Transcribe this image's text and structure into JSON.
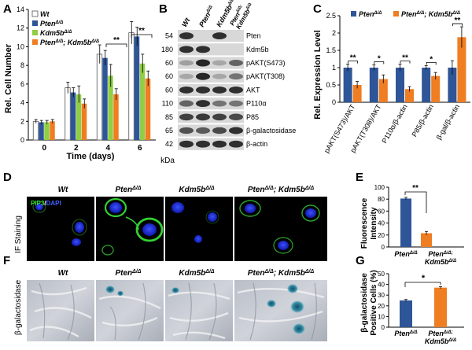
{
  "panels": {
    "A": "A",
    "B": "B",
    "C": "C",
    "D": "D",
    "E": "E",
    "F": "F",
    "G": "G"
  },
  "panelA": {
    "ylabel": "Rel. Cell Number",
    "xlabel": "Time (days)",
    "legend": [
      {
        "base": "Wt",
        "sup": ""
      },
      {
        "base": "Pten",
        "sup": "Δ/Δ"
      },
      {
        "base": "Kdm5b",
        "sup": "Δ/Δ"
      },
      {
        "base": "Pten",
        "sup": "Δ/Δ",
        "base2": "; Kdm5b",
        "sup2": "Δ/Δ"
      }
    ],
    "sig": [
      "**",
      "**"
    ]
  },
  "panelB": {
    "columns": [
      {
        "base": "Wt",
        "sup": ""
      },
      {
        "base": "Pten",
        "sup": "Δ/Δ"
      },
      {
        "base": "Kdm5b",
        "sup": "Δ/Δ"
      },
      {
        "base": "Pten",
        "sup": "Δ/Δ;",
        "line2": "Kdm5b",
        "sup2": "Δ/Δ"
      }
    ],
    "rows": [
      {
        "kda": "54",
        "label": "Pten",
        "bands": [
          0.9,
          0.0,
          0.9,
          0.0
        ]
      },
      {
        "kda": "180",
        "label": "Kdm5b",
        "bands": [
          0.9,
          0.9,
          0.0,
          0.0
        ]
      },
      {
        "kda": "60",
        "label": "pAKT(S473)",
        "bands": [
          0.25,
          0.95,
          0.2,
          0.6
        ]
      },
      {
        "kda": "60",
        "label": "pAKT(T308)",
        "bands": [
          0.2,
          0.95,
          0.2,
          0.5
        ]
      },
      {
        "kda": "60",
        "label": "AKT",
        "bands": [
          0.9,
          0.9,
          0.9,
          0.9
        ]
      },
      {
        "kda": "110",
        "label": "P110α",
        "bands": [
          0.6,
          0.9,
          0.5,
          0.5
        ]
      },
      {
        "kda": "85",
        "label": "P85",
        "bands": [
          0.8,
          0.85,
          0.8,
          0.75
        ]
      },
      {
        "kda": "65",
        "label": "β-galactosidase",
        "bands": [
          0.7,
          0.65,
          0.75,
          0.9
        ]
      },
      {
        "kda": "42",
        "label": "β-actin",
        "bands": [
          0.9,
          0.9,
          0.9,
          0.9
        ]
      }
    ],
    "kda_unit": "kDa"
  },
  "panelC": {
    "ylabel": "Rel. Expression Level",
    "legend": [
      {
        "base": "Pten",
        "sup": "Δ/Δ"
      },
      {
        "base": "Pten",
        "sup": "Δ/Δ",
        "base2": "; Kdm5b",
        "sup2": "Δ/Δ"
      }
    ],
    "sig": [
      "**",
      "*",
      "**",
      "*",
      "**"
    ]
  },
  "panelD": {
    "side_label": "IF Staining",
    "columns": [
      {
        "base": "Wt",
        "sup": ""
      },
      {
        "base": "Pten",
        "sup": "Δ/Δ"
      },
      {
        "base": "Kdm5b",
        "sup": "Δ/Δ"
      },
      {
        "base": "Pten",
        "sup": "Δ/Δ",
        "base2": "; Kdm5b",
        "sup2": "Δ/Δ"
      }
    ],
    "stain_green": "PIP3",
    "stain_sep": "/",
    "stain_blue": "DAPI"
  },
  "panelE": {
    "ylabel_line1": "Fluorescence",
    "ylabel_line2": "Intensity",
    "sig": "**",
    "xlabels": [
      {
        "base": "Pten",
        "sup": "Δ/Δ"
      },
      {
        "base": "Pten",
        "sup": "Δ/Δ;",
        "line2": "Kdm5b",
        "sup2": "Δ/Δ"
      }
    ]
  },
  "panelF": {
    "side_label": "β-galactosidase",
    "columns": [
      {
        "base": "Wt",
        "sup": ""
      },
      {
        "base": "Pten",
        "sup": "Δ/Δ"
      },
      {
        "base": "Kdm5b",
        "sup": "Δ/Δ"
      },
      {
        "base": "Pten",
        "sup": "Δ/Δ",
        "base2": "; Kdm5b",
        "sup2": "Δ/Δ"
      }
    ]
  },
  "panelG": {
    "ylabel_line1": "β-galactosidase",
    "ylabel_line2": "Positive Cells (%)",
    "sig": "*",
    "xlabels": [
      {
        "base": "Pten",
        "sup": "Δ/Δ"
      },
      {
        "base": "Pten",
        "sup": "Δ/Δ;",
        "line2": "Kdm5b",
        "sup2": "Δ/Δ"
      }
    ]
  },
  "chart_data": [
    {
      "type": "bar",
      "title": "",
      "xlabel": "Time (days)",
      "ylabel": "Rel. Cell Number",
      "categories": [
        "0",
        "2",
        "4",
        "6"
      ],
      "ylim": [
        0,
        14
      ],
      "yticks": [
        0,
        2,
        4,
        6,
        8,
        10,
        12,
        14
      ],
      "series": [
        {
          "name": "Wt",
          "color": "#ffffff",
          "values": [
            2.0,
            5.6,
            9.2,
            11.5
          ],
          "err": [
            0.2,
            0.6,
            1.0,
            1.2
          ]
        },
        {
          "name": "PtenΔ/Δ",
          "color": "#2e5597",
          "values": [
            1.9,
            5.1,
            8.8,
            11.1
          ],
          "err": [
            0.2,
            0.5,
            0.8,
            1.0
          ]
        },
        {
          "name": "Kdm5bΔ/Δ",
          "color": "#8fce45",
          "values": [
            1.9,
            4.9,
            6.9,
            8.2
          ],
          "err": [
            0.2,
            0.9,
            1.2,
            1.0
          ]
        },
        {
          "name": "PtenΔ/Δ; Kdm5bΔ/Δ",
          "color": "#ef7d21",
          "values": [
            2.0,
            3.9,
            4.9,
            6.6
          ],
          "err": [
            0.2,
            0.5,
            0.6,
            0.8
          ]
        }
      ]
    },
    {
      "type": "bar",
      "title": "",
      "ylabel": "Rel. Expression Level",
      "categories": [
        "pAKT(S473)/AKT",
        "pAKT(T308)/AKT",
        "P110α/β-actin",
        "P85/β-actin",
        "β-gal/β-actin"
      ],
      "ylim": [
        0,
        2.5
      ],
      "yticks": [
        0,
        0.5,
        1,
        1.5,
        2,
        2.5
      ],
      "series": [
        {
          "name": "PtenΔ/Δ",
          "color": "#2e5597",
          "values": [
            1.0,
            1.0,
            1.0,
            1.0,
            1.0
          ],
          "err": [
            0.1,
            0.08,
            0.1,
            0.06,
            0.2
          ]
        },
        {
          "name": "PtenΔ/Δ; Kdm5bΔ/Δ",
          "color": "#ef7d21",
          "values": [
            0.5,
            0.67,
            0.38,
            0.76,
            1.88
          ],
          "err": [
            0.1,
            0.12,
            0.07,
            0.1,
            0.3
          ]
        }
      ]
    },
    {
      "type": "bar",
      "ylabel": "Fluorescence Intensity",
      "categories": [
        "PtenΔ/Δ",
        "PtenΔ/Δ; Kdm5bΔ/Δ"
      ],
      "ylim": [
        0,
        100
      ],
      "yticks": [
        0,
        20,
        40,
        60,
        80,
        100
      ],
      "series": [
        {
          "name": "",
          "colors": [
            "#2e5597",
            "#ef7d21"
          ],
          "values": [
            81,
            23
          ],
          "err": [
            2,
            3
          ]
        }
      ]
    },
    {
      "type": "bar",
      "ylabel": "β-galactosidase Positive Cells (%)",
      "categories": [
        "PtenΔ/Δ",
        "PtenΔ/Δ; Kdm5bΔ/Δ"
      ],
      "ylim": [
        0,
        50
      ],
      "yticks": [
        0,
        10,
        20,
        30,
        40,
        50
      ],
      "series": [
        {
          "name": "",
          "colors": [
            "#2e5597",
            "#ef7d21"
          ],
          "values": [
            25,
            37
          ],
          "err": [
            1,
            1
          ]
        }
      ]
    }
  ]
}
